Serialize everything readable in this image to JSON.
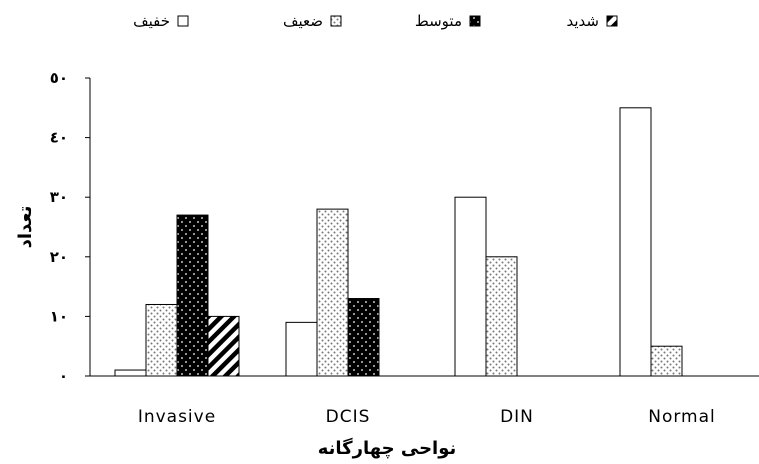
{
  "chart_data": {
    "type": "bar",
    "categories": [
      "Invasive",
      "DCIS",
      "DIN",
      "Normal"
    ],
    "series": [
      {
        "name": "خفیف",
        "values": [
          1,
          9,
          30,
          45
        ],
        "pattern": "empty"
      },
      {
        "name": "ضعیف",
        "values": [
          12,
          28,
          20,
          5
        ],
        "pattern": "dotted-light"
      },
      {
        "name": "متوسط",
        "values": [
          27,
          13,
          0,
          0
        ],
        "pattern": "dotted-dark"
      },
      {
        "name": "شدید",
        "values": [
          10,
          0,
          0,
          0
        ],
        "pattern": "diagonal"
      }
    ],
    "xlabel": "نواحی چهارگانه",
    "ylabel": "تعداد",
    "ylim": [
      0,
      50
    ],
    "yticks": [
      0,
      10,
      20,
      30,
      40,
      50
    ],
    "ytick_labels": [
      "٠",
      "١٠",
      "٢٠",
      "٣٠",
      "٤٠",
      "٥٠"
    ],
    "grid": false,
    "legend_position": "top"
  }
}
